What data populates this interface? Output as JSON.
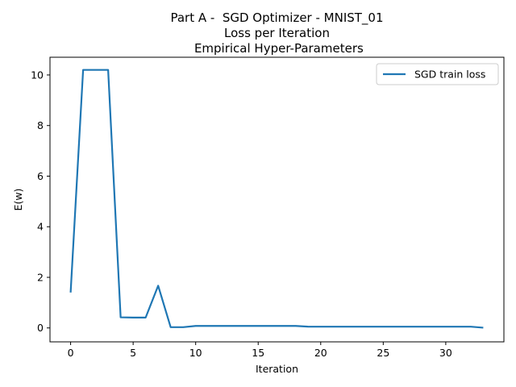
{
  "chart_data": {
    "type": "line",
    "title_lines": [
      "Part A -  SGD Optimizer - MNIST_01",
      "Loss per Iteration",
      " Empirical Hyper-Parameters"
    ],
    "xlabel": "Iteration",
    "ylabel": "E(w)",
    "xlim": [
      -1.65,
      34.65
    ],
    "ylim": [
      -0.55,
      10.7
    ],
    "xticks": [
      0,
      5,
      10,
      15,
      20,
      25,
      30
    ],
    "yticks": [
      0,
      2,
      4,
      6,
      8,
      10
    ],
    "legend_position": "top-right",
    "grid": false,
    "series": [
      {
        "name": "SGD train loss",
        "color": "#1f77b4",
        "x": [
          0,
          1,
          2,
          3,
          4,
          5,
          6,
          7,
          8,
          9,
          10,
          11,
          12,
          13,
          14,
          15,
          16,
          17,
          18,
          19,
          20,
          21,
          22,
          23,
          24,
          25,
          26,
          27,
          28,
          29,
          30,
          31,
          32,
          33
        ],
        "y": [
          1.4,
          10.2,
          10.2,
          10.2,
          0.42,
          0.41,
          0.41,
          1.67,
          0.03,
          0.03,
          0.08,
          0.08,
          0.08,
          0.08,
          0.08,
          0.08,
          0.08,
          0.08,
          0.08,
          0.05,
          0.05,
          0.05,
          0.05,
          0.05,
          0.05,
          0.05,
          0.05,
          0.05,
          0.05,
          0.05,
          0.05,
          0.05,
          0.05,
          0.01
        ]
      }
    ]
  }
}
